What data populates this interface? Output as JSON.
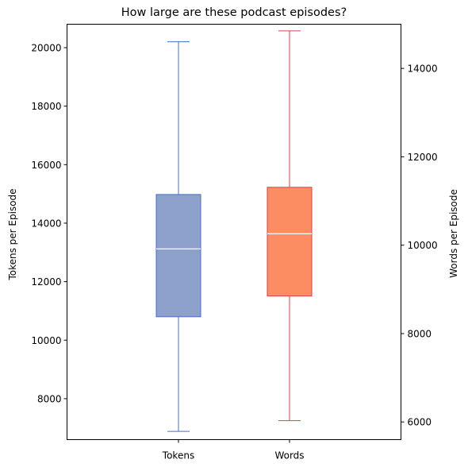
{
  "chart_data": {
    "type": "box",
    "title": "How large are these podcast episodes?",
    "categories": [
      "Tokens",
      "Words"
    ],
    "left_axis": {
      "label": "Tokens per Episode",
      "ylim": [
        6600,
        20800
      ],
      "ticks": [
        8000,
        10000,
        12000,
        14000,
        16000,
        18000,
        20000
      ]
    },
    "right_axis": {
      "label": "Words per Episode",
      "ylim": [
        5600,
        15000
      ],
      "ticks": [
        6000,
        8000,
        10000,
        12000,
        14000
      ]
    },
    "series": [
      {
        "name": "Tokens",
        "axis": "left",
        "whisker_low": 6880,
        "q1": 10800,
        "median": 13120,
        "q3": 14980,
        "whisker_high": 20200,
        "fill_color": "#8da0cb",
        "line_color": "#4472c4",
        "median_color": "#ffffff"
      },
      {
        "name": "Words",
        "axis": "right",
        "whisker_low": 6030,
        "q1": 8850,
        "median": 10260,
        "q3": 11310,
        "whisker_high": 14850,
        "fill_color": "#fc8d62",
        "line_color": "#d9414a",
        "median_color": "#ffffff"
      }
    ],
    "grid": false,
    "legend": "none"
  }
}
